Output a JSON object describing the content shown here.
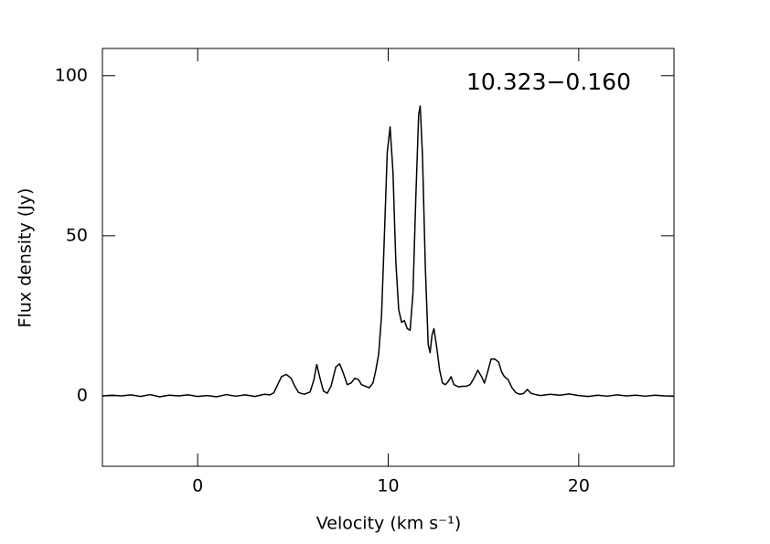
{
  "chart_data": {
    "type": "line",
    "annotation": "10.323−0.160",
    "xlabel": "Velocity (km s⁻¹)",
    "ylabel": "Flux density (Jy)",
    "xlim": [
      -5,
      25
    ],
    "ylim": [
      -22,
      108.5
    ],
    "xticks": [
      0,
      10,
      20
    ],
    "yticks": [
      0,
      50,
      100
    ],
    "series": [
      {
        "color": "#000000",
        "x": [
          -5,
          -4.5,
          -4,
          -3.5,
          -3,
          -2.5,
          -2,
          -1.5,
          -1,
          -0.5,
          0,
          0.5,
          1,
          1.5,
          2,
          2.5,
          3,
          3.5,
          3.8,
          4.0,
          4.2,
          4.4,
          4.65,
          4.9,
          5.1,
          5.3,
          5.6,
          5.9,
          6.1,
          6.25,
          6.4,
          6.6,
          6.8,
          7.0,
          7.25,
          7.45,
          7.65,
          7.85,
          8.05,
          8.25,
          8.45,
          8.6,
          8.8,
          9.0,
          9.2,
          9.35,
          9.5,
          9.65,
          9.8,
          9.95,
          10.1,
          10.25,
          10.4,
          10.55,
          10.7,
          10.85,
          11.0,
          11.15,
          11.3,
          11.45,
          11.6,
          11.68,
          11.8,
          11.95,
          12.1,
          12.2,
          12.3,
          12.4,
          12.55,
          12.7,
          12.85,
          13.0,
          13.15,
          13.3,
          13.45,
          13.7,
          13.9,
          14.1,
          14.3,
          14.5,
          14.7,
          14.9,
          15.05,
          15.2,
          15.4,
          15.6,
          15.8,
          15.95,
          16.1,
          16.3,
          16.5,
          16.7,
          16.9,
          17.1,
          17.3,
          17.5,
          17.8,
          18,
          18.5,
          19,
          19.5,
          20,
          20.5,
          21,
          21.5,
          22,
          22.5,
          23,
          23.5,
          24,
          24.5,
          25
        ],
        "values": [
          0,
          0.2,
          0,
          0.3,
          -0.2,
          0.4,
          -0.3,
          0.2,
          0,
          0.3,
          -0.2,
          0.1,
          -0.3,
          0.4,
          -0.1,
          0.3,
          -0.2,
          0.5,
          0.3,
          1.0,
          3.5,
          6.0,
          6.7,
          5.5,
          3.0,
          1.0,
          0.5,
          1.2,
          5,
          9.8,
          6,
          1.5,
          0.8,
          3,
          9,
          10,
          7,
          3.5,
          4,
          5.5,
          5,
          3.5,
          3,
          2.5,
          4,
          8,
          13,
          25,
          50,
          76,
          84,
          70,
          42,
          27,
          23,
          23.5,
          21,
          20.5,
          32,
          62,
          88,
          90.5,
          75,
          40,
          16,
          13.5,
          19,
          21,
          15,
          8,
          4,
          3.5,
          4.5,
          6,
          3.5,
          2.8,
          3,
          3,
          3.5,
          5.5,
          8,
          6,
          4,
          7,
          11.5,
          11.5,
          10.5,
          7.5,
          6,
          5,
          2.5,
          1,
          0.5,
          0.7,
          2,
          0.8,
          0.3,
          0.1,
          0.5,
          0.2,
          0.6,
          0.1,
          -0.2,
          0.2,
          -0.1,
          0.3,
          0,
          0.2,
          -0.1,
          0.2,
          0,
          -0.1
        ]
      }
    ]
  }
}
